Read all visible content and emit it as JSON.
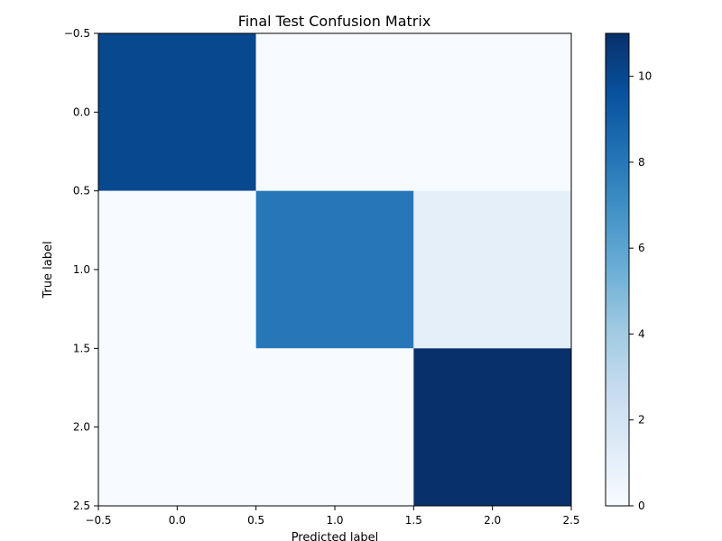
{
  "chart_data": {
    "type": "heatmap",
    "title": "Final Test Confusion Matrix",
    "xlabel": "Predicted label",
    "ylabel": "True label",
    "matrix": [
      [
        10,
        0,
        0
      ],
      [
        0,
        8,
        1
      ],
      [
        0,
        0,
        11
      ]
    ],
    "xlim": [
      -0.5,
      2.5
    ],
    "ylim": [
      2.5,
      -0.5
    ],
    "x_ticks": [
      -0.5,
      0.0,
      0.5,
      1.0,
      1.5,
      2.0,
      2.5
    ],
    "y_ticks": [
      -0.5,
      0.0,
      0.5,
      1.0,
      1.5,
      2.0,
      2.5
    ],
    "x_tick_labels": [
      "−0.5",
      "0.0",
      "0.5",
      "1.0",
      "1.5",
      "2.0",
      "2.5"
    ],
    "y_tick_labels": [
      "−0.5",
      "0.0",
      "0.5",
      "1.0",
      "1.5",
      "2.0",
      "2.5"
    ],
    "colorbar": {
      "min": 0,
      "max": 11,
      "ticks": [
        0,
        2,
        4,
        6,
        8,
        10
      ],
      "tick_labels": [
        "0",
        "2",
        "4",
        "6",
        "8",
        "10"
      ],
      "colormap": "Blues"
    },
    "grid": false,
    "legend": "none"
  }
}
